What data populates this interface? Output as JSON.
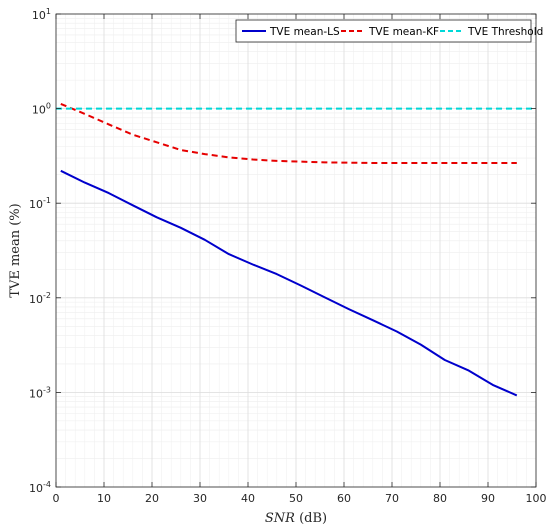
{
  "chart_data": {
    "type": "line",
    "xlabel": {
      "var": "SNR",
      "unit": "(dB)"
    },
    "ylabel": "TVE mean (%)",
    "xlim": [
      0,
      100
    ],
    "ylim": [
      0.0001,
      10
    ],
    "yscale": "log",
    "xticks": [
      0,
      10,
      20,
      30,
      40,
      50,
      60,
      70,
      80,
      90,
      100
    ],
    "xtick_labels": [
      "0",
      "10",
      "20",
      "30",
      "40",
      "50",
      "60",
      "70",
      "80",
      "90",
      "100"
    ],
    "yticks": [
      {
        "value": 10,
        "base": "10",
        "exp": "1"
      },
      {
        "value": 1,
        "base": "10",
        "exp": "0"
      },
      {
        "value": 0.1,
        "base": "10",
        "exp": "-1"
      },
      {
        "value": 0.01,
        "base": "10",
        "exp": "-2"
      },
      {
        "value": 0.001,
        "base": "10",
        "exp": "-3"
      },
      {
        "value": 0.0001,
        "base": "10",
        "exp": "-4"
      }
    ],
    "grid": true,
    "minor_grid": true,
    "legend_position": "top-right",
    "series": [
      {
        "name": "TVE mean-LS",
        "color": "#0000cc",
        "style": "solid",
        "x": [
          1,
          6,
          11,
          16,
          21,
          26,
          31,
          36,
          41,
          46,
          51,
          56,
          61,
          66,
          71,
          76,
          81,
          86,
          91,
          96
        ],
        "y": [
          0.22,
          0.165,
          0.128,
          0.095,
          0.071,
          0.055,
          0.041,
          0.029,
          0.0225,
          0.0178,
          0.0135,
          0.0101,
          0.0076,
          0.0058,
          0.0044,
          0.0032,
          0.0022,
          0.0017,
          0.0012,
          0.00093
        ]
      },
      {
        "name": "TVE mean-KF",
        "color": "#e60000",
        "style": "dashed",
        "x": [
          1,
          6,
          11,
          16,
          21,
          26,
          31,
          36,
          41,
          46,
          51,
          56,
          61,
          66,
          71,
          76,
          81,
          86,
          91,
          96
        ],
        "y": [
          1.12,
          0.88,
          0.68,
          0.53,
          0.44,
          0.365,
          0.33,
          0.305,
          0.29,
          0.28,
          0.275,
          0.27,
          0.268,
          0.266,
          0.266,
          0.266,
          0.266,
          0.266,
          0.266,
          0.266
        ]
      },
      {
        "name": "TVE Threshold",
        "color": "#00d8d8",
        "style": "dashed",
        "x": [
          0,
          100
        ],
        "y": [
          1,
          1
        ]
      }
    ]
  }
}
